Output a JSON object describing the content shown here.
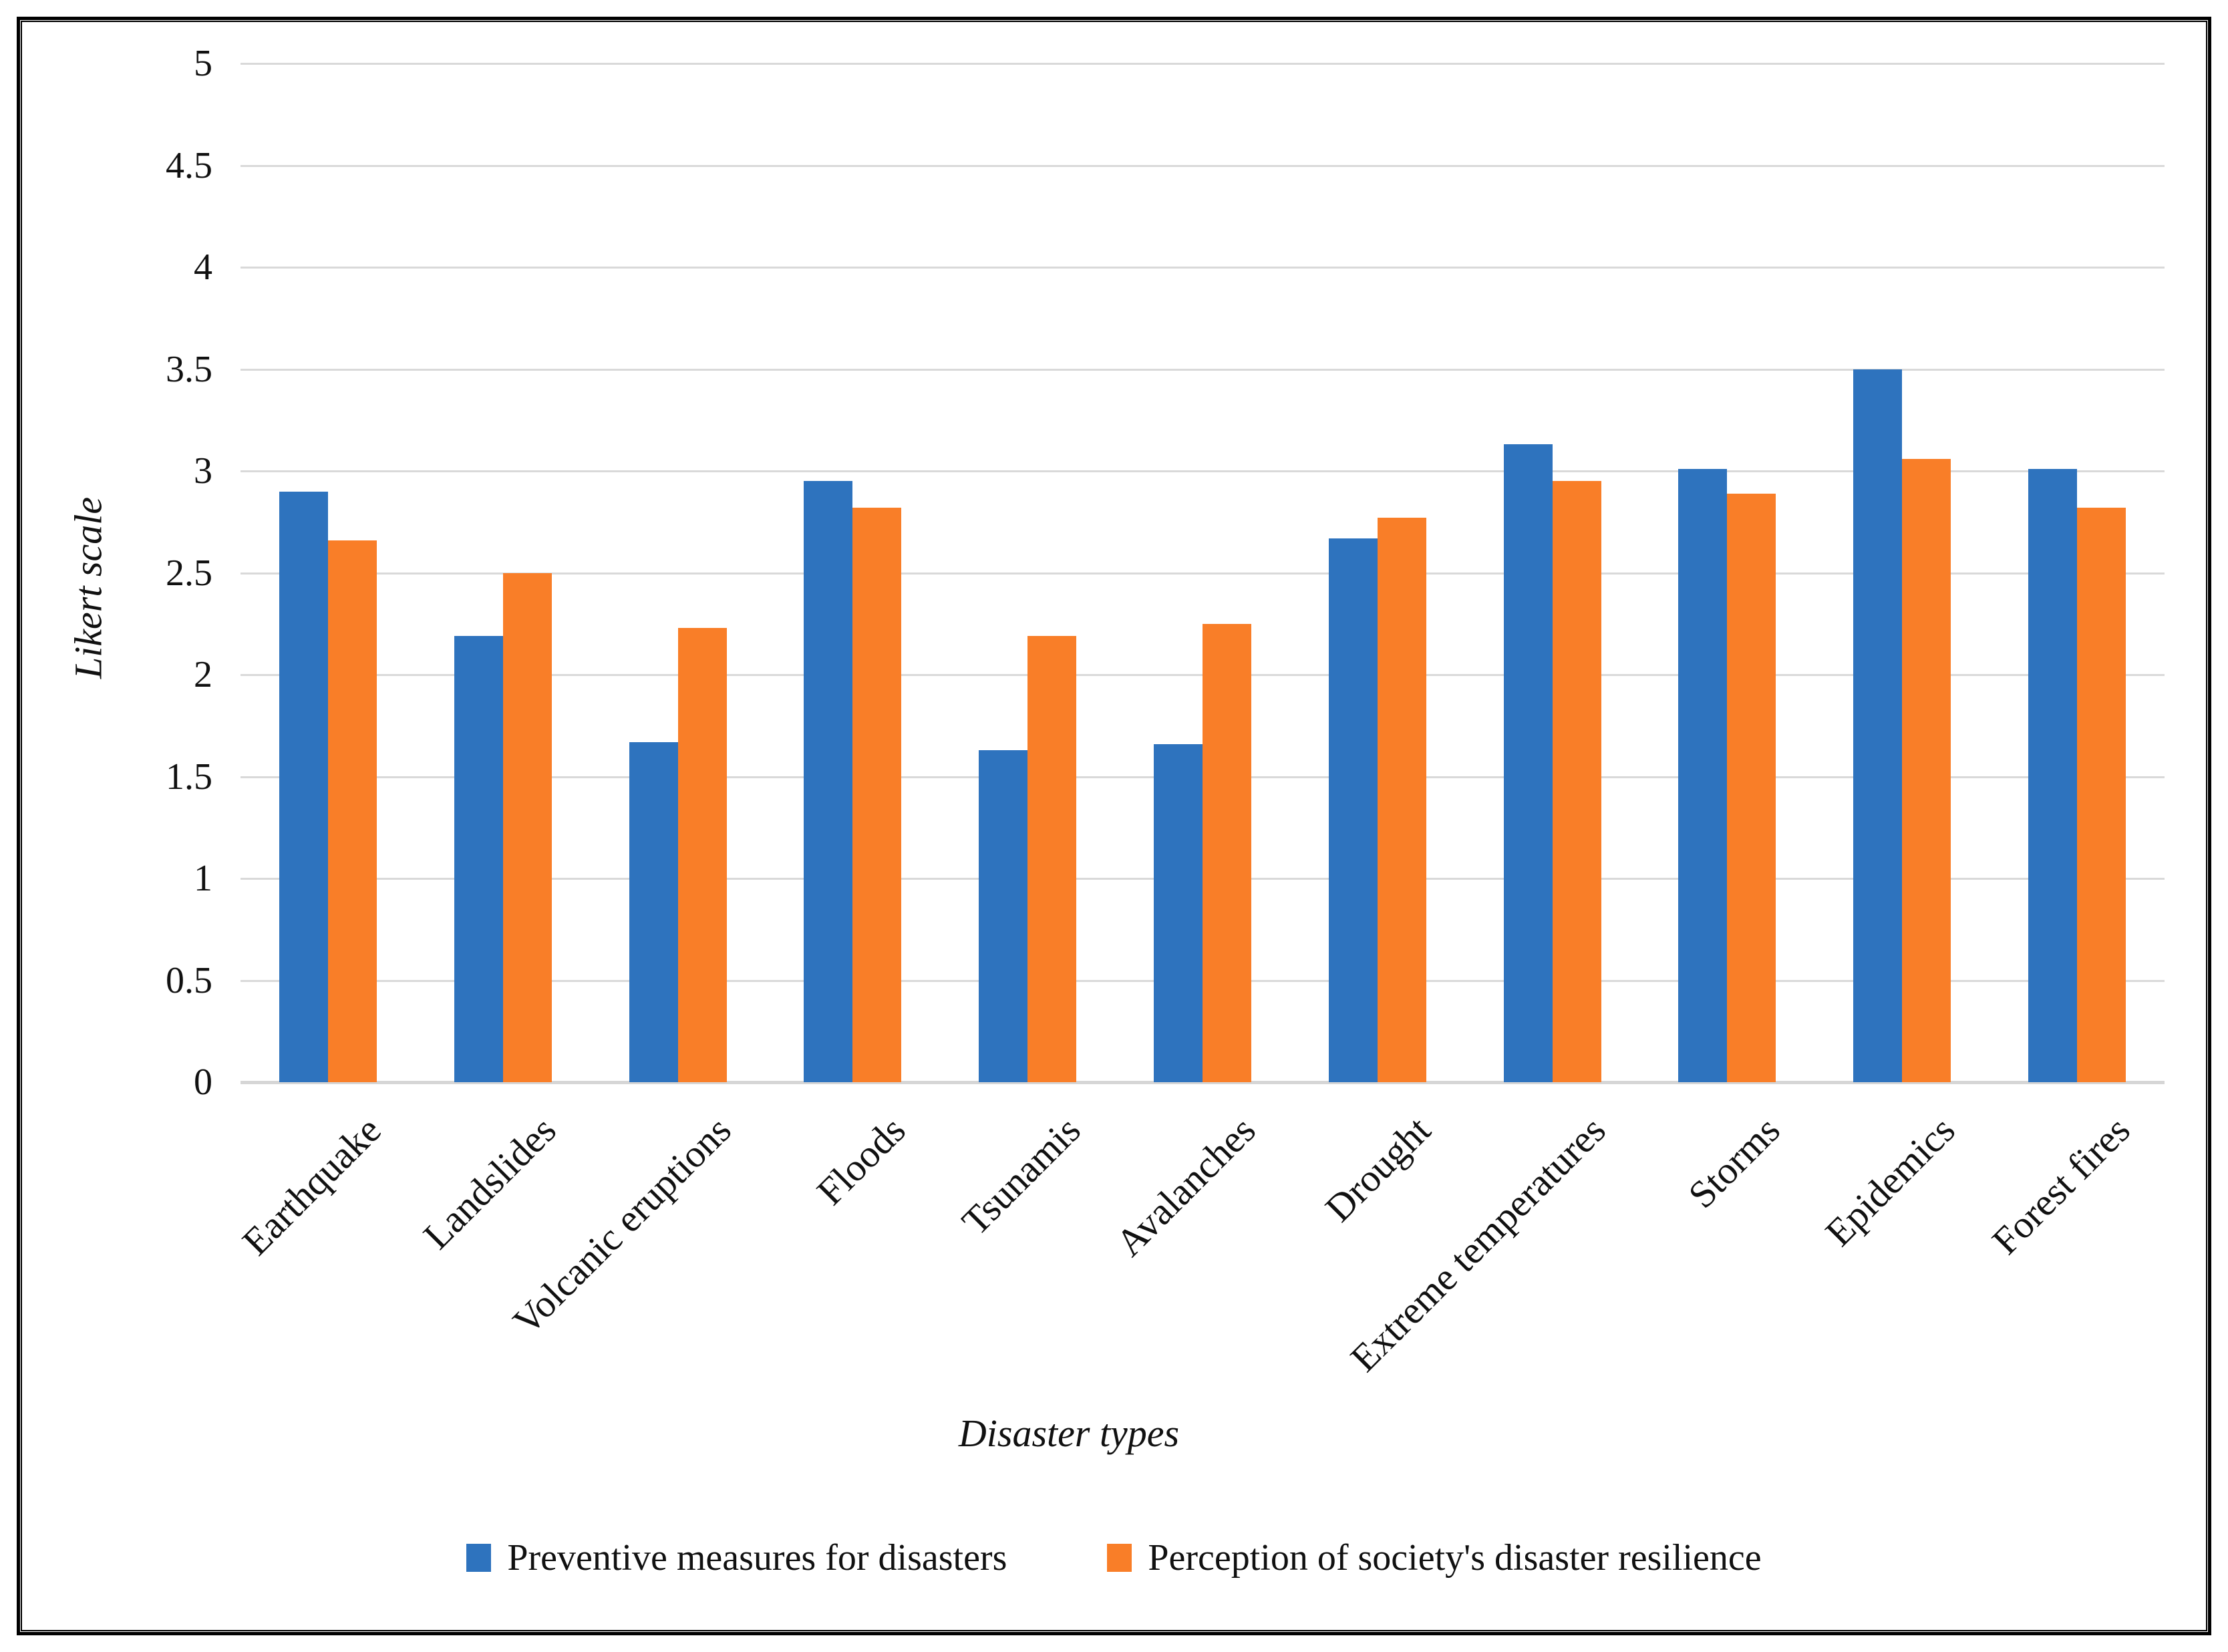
{
  "figure": {
    "background": "#ffffff",
    "border_color": "#000000"
  },
  "chart_data": {
    "type": "bar",
    "title": "",
    "categories": [
      "Earthquake",
      "Landslides",
      "Volcanic eruptions",
      "Floods",
      "Tsunamis",
      "Avalanches",
      "Drought",
      "Extreme temperatures",
      "Storms",
      "Epidemics",
      "Forest fires"
    ],
    "series": [
      {
        "name": "Preventive measures for disasters",
        "color": "#2E73BE",
        "values": [
          2.9,
          2.19,
          1.67,
          2.95,
          1.63,
          1.66,
          2.67,
          3.13,
          3.01,
          3.5,
          3.01
        ]
      },
      {
        "name": "Perception of society's disaster resilience",
        "color": "#F97E28",
        "values": [
          2.66,
          2.5,
          2.23,
          2.82,
          2.19,
          2.25,
          2.77,
          2.95,
          2.89,
          3.06,
          2.82
        ]
      }
    ],
    "xlabel": "Disaster types",
    "ylabel": "Likert scale",
    "ylim": [
      0,
      5
    ],
    "ytick_step": 0.5,
    "yticks": [
      "5",
      "4.5",
      "4",
      "3.5",
      "3",
      "2.5",
      "2",
      "1.5",
      "1",
      "0.5",
      "0"
    ],
    "grid": true,
    "gridline_color": "#D9D9D9",
    "axis_line_color": "#D6D6D6",
    "legend_position": "bottom"
  }
}
